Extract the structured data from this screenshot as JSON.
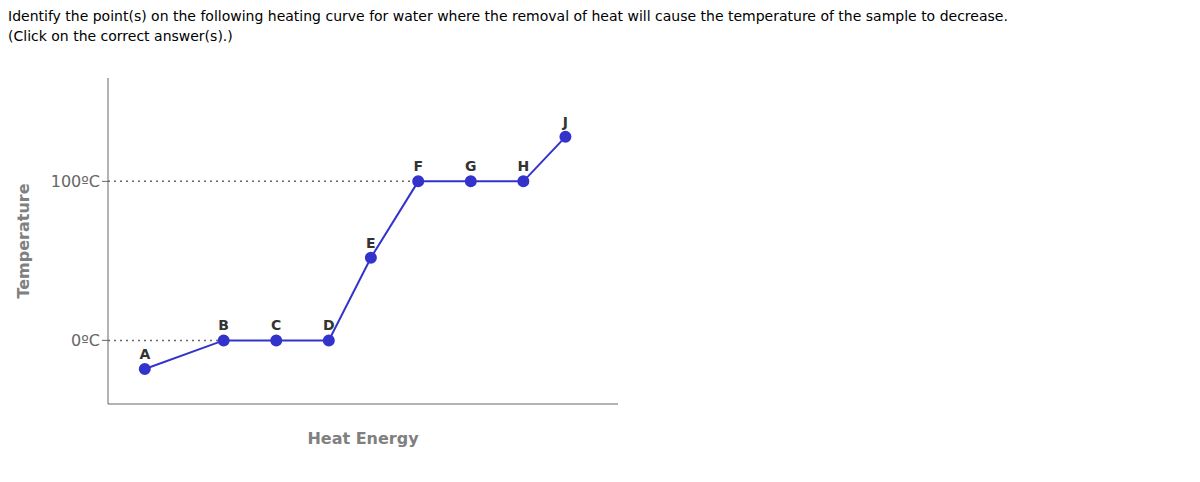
{
  "chart_data": {
    "type": "line",
    "title": "Identify the point(s) on the following heating curve for water where the removal of heat will cause the temperature of the sample to decrease.",
    "subtitle": "(Click on the correct answer(s).)",
    "x_label": "Heat Energy",
    "y_label": "Temperature",
    "x": [
      1.0,
      2.5,
      3.5,
      4.5,
      5.3,
      6.2,
      7.2,
      8.2,
      9.0
    ],
    "values": [
      -18,
      0,
      0,
      0,
      52,
      100,
      100,
      100,
      128
    ],
    "point_labels": [
      "A",
      "B",
      "C",
      "D",
      "E",
      "F",
      "G",
      "H",
      "J"
    ],
    "color": "#3333cc",
    "marker": "circle",
    "xlim": [
      0.3,
      10.0
    ],
    "ylim": [
      -40,
      165
    ],
    "yticks": [
      {
        "value": 0,
        "label": "0ºC"
      },
      {
        "value": 100,
        "label": "100ºC"
      }
    ],
    "tick_labels": "y",
    "annotations": [
      {
        "y": 0,
        "x": [
          0.3,
          2.5
        ],
        "line_style": "dotted"
      },
      {
        "y": 100,
        "x": [
          0.3,
          6.2
        ],
        "line_style": "dotted"
      }
    ]
  }
}
